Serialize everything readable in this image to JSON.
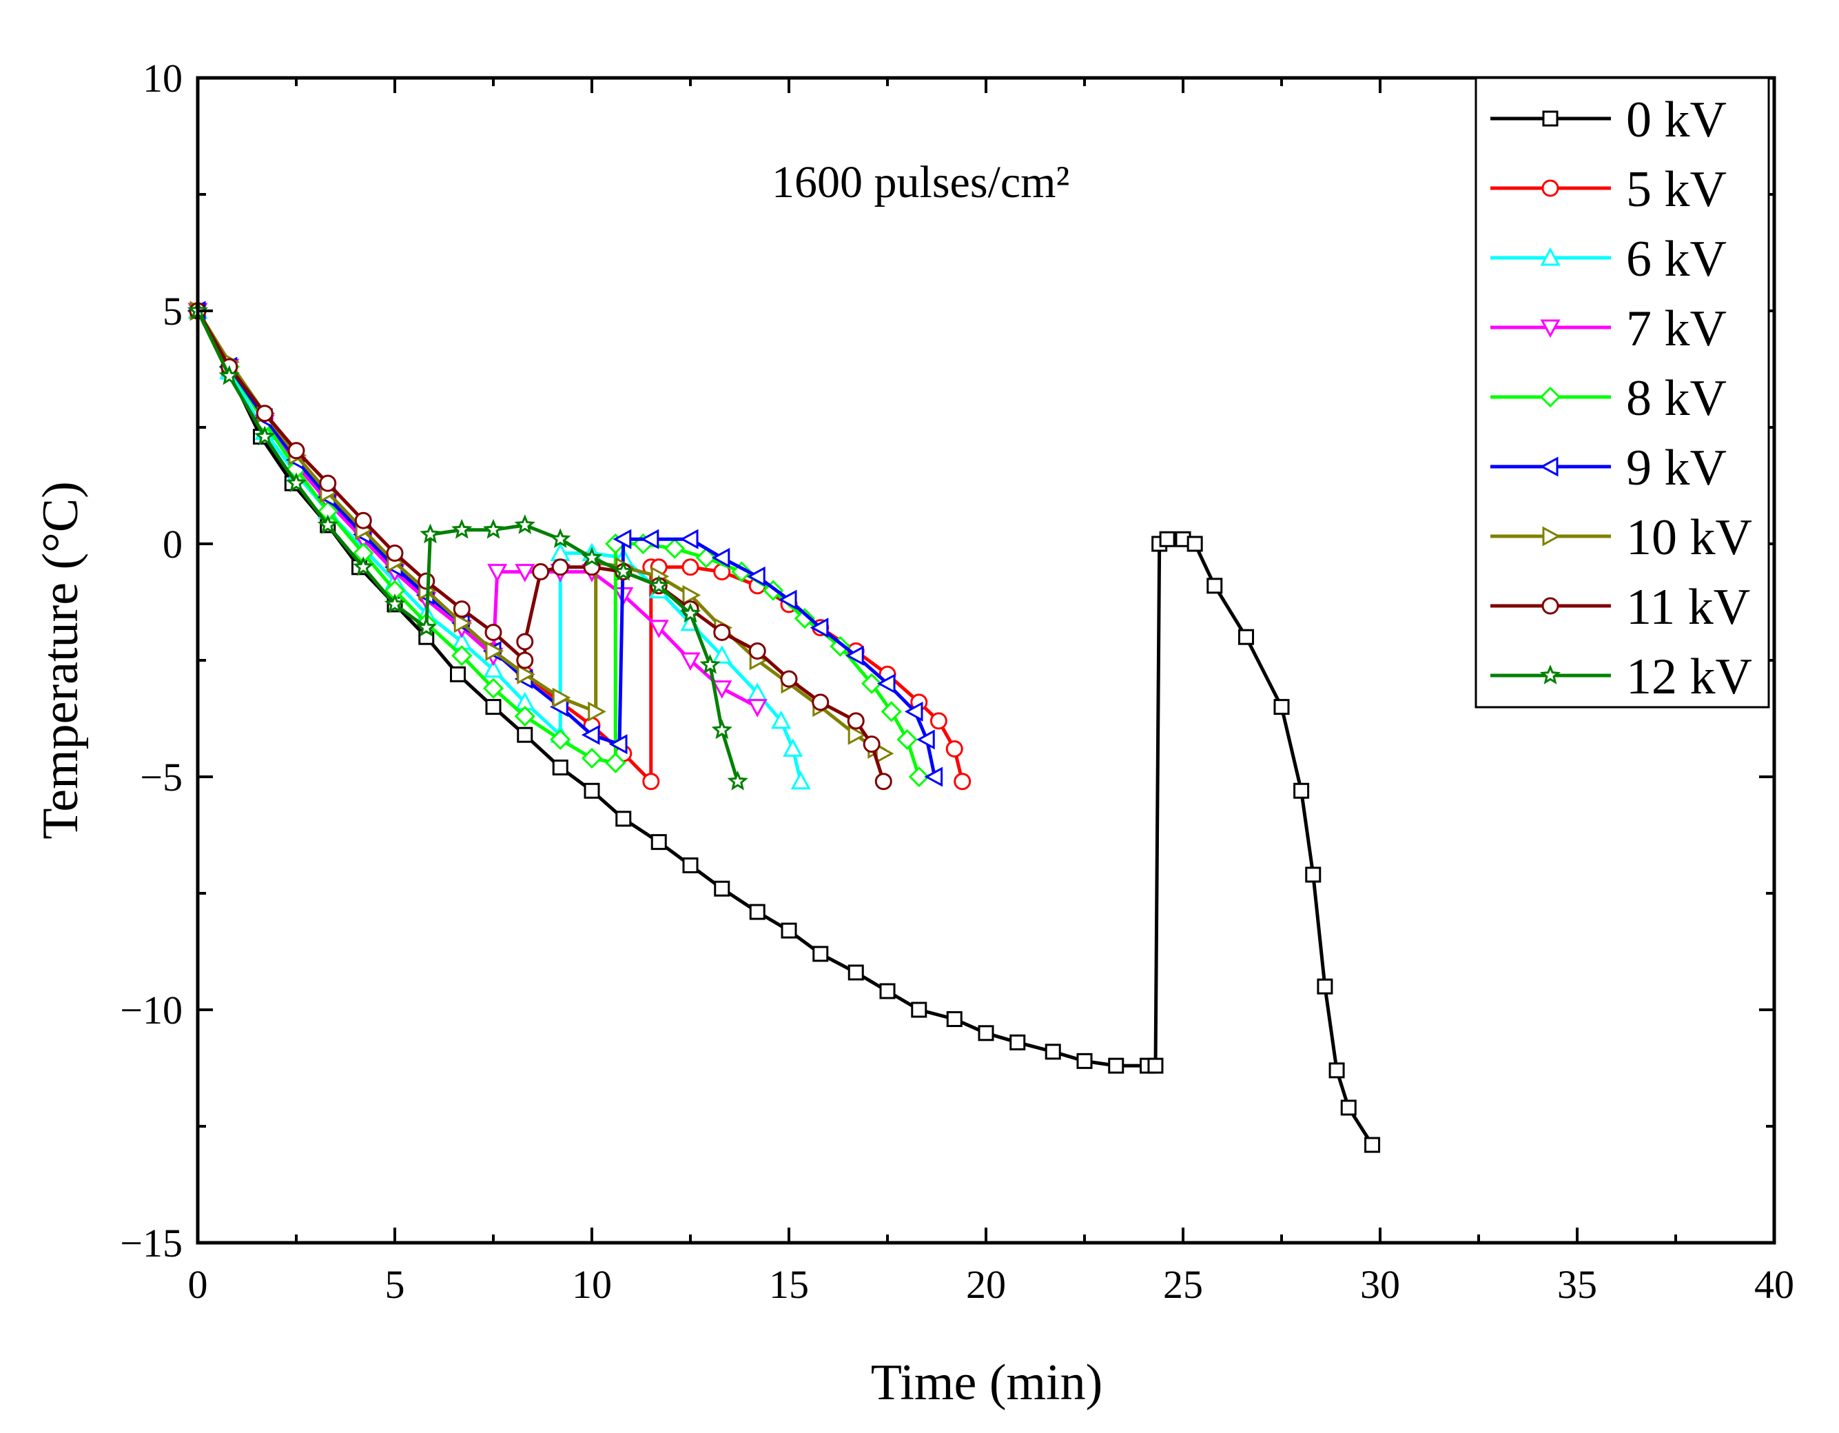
{
  "chart_data": {
    "type": "line",
    "title": "",
    "annotation": "1600 pulses/cm²",
    "xlabel": "Time (min)",
    "ylabel": "Temperature (°C)",
    "xlim": [
      0,
      40
    ],
    "ylim": [
      -15,
      10
    ],
    "xticks": [
      0,
      5,
      10,
      15,
      20,
      25,
      30,
      35,
      40
    ],
    "yticks": [
      -15,
      -10,
      -5,
      0,
      5,
      10
    ],
    "xtick_labels": [
      "0",
      "5",
      "10",
      "15",
      "20",
      "25",
      "30",
      "35",
      "40"
    ],
    "ytick_labels": [
      "−15",
      "−10",
      "−5",
      "0",
      "5",
      "10"
    ],
    "grid": false,
    "legend_position": "top-right",
    "series": [
      {
        "name": "0 kV",
        "color": "#000000",
        "marker": "square",
        "x": [
          0,
          0.8,
          1.6,
          2.4,
          3.3,
          4.1,
          5.0,
          5.8,
          6.6,
          7.5,
          8.3,
          9.2,
          10.0,
          10.8,
          11.7,
          12.5,
          13.3,
          14.2,
          15.0,
          15.8,
          16.7,
          17.5,
          18.3,
          19.2,
          20.0,
          20.8,
          21.7,
          22.5,
          23.3,
          24.1,
          24.3,
          24.4,
          24.6,
          25.0,
          25.3,
          25.8,
          26.6,
          27.5,
          28.0,
          28.3,
          28.6,
          28.9,
          29.2,
          29.8
        ],
        "y": [
          5.0,
          3.7,
          2.3,
          1.3,
          0.4,
          -0.5,
          -1.3,
          -2.0,
          -2.8,
          -3.5,
          -4.1,
          -4.8,
          -5.3,
          -5.9,
          -6.4,
          -6.9,
          -7.4,
          -7.9,
          -8.3,
          -8.8,
          -9.2,
          -9.6,
          -10.0,
          -10.2,
          -10.5,
          -10.7,
          -10.9,
          -11.1,
          -11.2,
          -11.2,
          -11.2,
          0.0,
          0.1,
          0.1,
          0.0,
          -0.9,
          -2.0,
          -3.5,
          -5.3,
          -7.1,
          -9.5,
          -11.3,
          -12.1,
          -12.9
        ]
      },
      {
        "name": "5 kV",
        "color": "#ff0000",
        "marker": "circle",
        "x": [
          0,
          0.8,
          1.7,
          2.5,
          3.3,
          4.2,
          5.0,
          5.8,
          6.7,
          7.5,
          8.3,
          9.2,
          10.0,
          10.8,
          11.5,
          11.5,
          11.7,
          12.5,
          13.3,
          14.2,
          15.0,
          15.8,
          16.7,
          17.5,
          18.3,
          18.8,
          19.2,
          19.4
        ],
        "y": [
          5.0,
          3.8,
          2.7,
          1.8,
          1.0,
          0.2,
          -0.5,
          -1.1,
          -1.7,
          -2.3,
          -2.8,
          -3.4,
          -3.9,
          -4.5,
          -5.1,
          -0.5,
          -0.5,
          -0.5,
          -0.6,
          -0.9,
          -1.3,
          -1.8,
          -2.3,
          -2.8,
          -3.4,
          -3.8,
          -4.4,
          -5.1
        ]
      },
      {
        "name": "6 kV",
        "color": "#00ffff",
        "marker": "triangle-up",
        "x": [
          0,
          0.8,
          1.7,
          2.5,
          3.3,
          4.2,
          5.0,
          5.8,
          6.7,
          7.5,
          8.3,
          9.2,
          9.2,
          10.0,
          10.8,
          11.7,
          12.5,
          13.3,
          14.2,
          14.8,
          15.1,
          15.3
        ],
        "y": [
          5.0,
          3.7,
          2.4,
          1.5,
          0.7,
          -0.1,
          -0.8,
          -1.5,
          -2.1,
          -2.7,
          -3.4,
          -4.1,
          -0.2,
          -0.2,
          -0.3,
          -1.0,
          -1.7,
          -2.4,
          -3.2,
          -3.8,
          -4.4,
          -5.1
        ]
      },
      {
        "name": "7 kV",
        "color": "#ff00ff",
        "marker": "triangle-down",
        "x": [
          0,
          0.8,
          1.7,
          2.5,
          3.3,
          4.2,
          5.0,
          5.8,
          6.7,
          7.5,
          7.6,
          8.3,
          9.2,
          10.0,
          10.8,
          11.7,
          12.5,
          13.3,
          14.2
        ],
        "y": [
          5.0,
          3.8,
          2.6,
          1.7,
          0.9,
          0.1,
          -0.6,
          -1.2,
          -1.8,
          -2.4,
          -0.6,
          -0.6,
          -0.6,
          -0.6,
          -1.1,
          -1.8,
          -2.5,
          -3.1,
          -3.5
        ]
      },
      {
        "name": "8 kV",
        "color": "#00ff00",
        "marker": "diamond",
        "x": [
          0,
          0.8,
          1.7,
          2.5,
          3.3,
          4.2,
          5.0,
          5.8,
          6.7,
          7.5,
          8.3,
          9.2,
          10.0,
          10.6,
          10.6,
          11.3,
          12.1,
          12.9,
          13.8,
          14.6,
          15.4,
          16.3,
          17.1,
          17.6,
          18.0,
          18.3
        ],
        "y": [
          5.0,
          3.8,
          2.6,
          1.6,
          0.7,
          -0.2,
          -1.0,
          -1.7,
          -2.4,
          -3.1,
          -3.7,
          -4.2,
          -4.6,
          -4.7,
          0.0,
          0.0,
          -0.1,
          -0.3,
          -0.6,
          -1.0,
          -1.6,
          -2.2,
          -3.0,
          -3.6,
          -4.2,
          -5.0
        ]
      },
      {
        "name": "9 kV",
        "color": "#0000ff",
        "marker": "triangle-left",
        "x": [
          0,
          0.8,
          1.7,
          2.5,
          3.3,
          4.2,
          5.0,
          5.8,
          6.7,
          7.5,
          8.3,
          9.2,
          10.0,
          10.7,
          10.8,
          11.5,
          12.5,
          13.3,
          14.2,
          15.0,
          15.8,
          16.7,
          17.5,
          18.2,
          18.5,
          18.7
        ],
        "y": [
          5.0,
          3.8,
          2.7,
          1.8,
          1.0,
          0.2,
          -0.5,
          -1.1,
          -1.7,
          -2.3,
          -2.9,
          -3.5,
          -4.1,
          -4.3,
          0.1,
          0.1,
          0.1,
          -0.3,
          -0.7,
          -1.2,
          -1.8,
          -2.4,
          -3.0,
          -3.6,
          -4.2,
          -5.0
        ]
      },
      {
        "name": "10 kV",
        "color": "#808000",
        "marker": "triangle-right",
        "x": [
          0,
          0.8,
          1.7,
          2.5,
          3.3,
          4.2,
          5.0,
          5.8,
          6.7,
          7.5,
          8.3,
          9.2,
          10.1,
          10.1,
          10.8,
          11.7,
          12.5,
          13.3,
          14.2,
          15.0,
          15.8,
          16.7,
          17.2,
          17.4
        ],
        "y": [
          5.0,
          3.9,
          2.8,
          1.9,
          1.1,
          0.3,
          -0.4,
          -1.0,
          -1.7,
          -2.3,
          -2.8,
          -3.3,
          -3.6,
          -0.4,
          -0.5,
          -0.7,
          -1.1,
          -1.8,
          -2.5,
          -3.0,
          -3.5,
          -4.1,
          -4.4,
          -4.5
        ]
      },
      {
        "name": "11 kV",
        "color": "#800000",
        "marker": "circle",
        "x": [
          0,
          0.8,
          1.7,
          2.5,
          3.3,
          4.2,
          5.0,
          5.8,
          6.7,
          7.5,
          8.3,
          8.3,
          8.7,
          9.2,
          10.0,
          10.8,
          11.7,
          12.5,
          13.3,
          14.2,
          15.0,
          15.8,
          16.7,
          17.1,
          17.4
        ],
        "y": [
          5.0,
          3.8,
          2.8,
          2.0,
          1.3,
          0.5,
          -0.2,
          -0.8,
          -1.4,
          -1.9,
          -2.5,
          -2.1,
          -0.6,
          -0.5,
          -0.5,
          -0.6,
          -0.9,
          -1.4,
          -1.9,
          -2.3,
          -2.9,
          -3.4,
          -3.8,
          -4.3,
          -5.1
        ]
      },
      {
        "name": "12 kV",
        "color": "#008000",
        "marker": "star",
        "x": [
          0,
          0.8,
          1.7,
          2.5,
          3.3,
          4.2,
          5.0,
          5.8,
          5.9,
          6.7,
          7.5,
          8.3,
          9.2,
          10.0,
          10.8,
          11.7,
          12.5,
          13.0,
          13.3,
          13.7
        ],
        "y": [
          5.0,
          3.6,
          2.3,
          1.3,
          0.4,
          -0.5,
          -1.3,
          -1.8,
          0.2,
          0.3,
          0.3,
          0.4,
          0.1,
          -0.3,
          -0.6,
          -0.9,
          -1.5,
          -2.6,
          -4.0,
          -5.1
        ]
      }
    ]
  }
}
